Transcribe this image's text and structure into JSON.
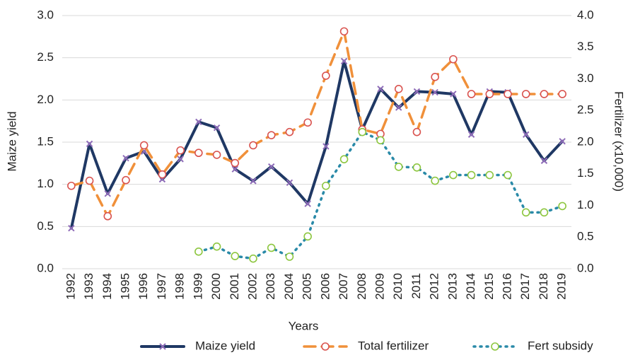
{
  "chart_data": {
    "type": "line",
    "x_label": "Years",
    "y_label": "Maize yield",
    "y2_label": "Fertilizer (x10,000)",
    "categories": [
      "1992",
      "1993",
      "1994",
      "1995",
      "1996",
      "1997",
      "1998",
      "1999",
      "2000",
      "2001",
      "2002",
      "2003",
      "2004",
      "2005",
      "2006",
      "2007",
      "2008",
      "2009",
      "2010",
      "2011",
      "2012",
      "2013",
      "2014",
      "2015",
      "2016",
      "2017",
      "2018",
      "2019"
    ],
    "ylim": [
      0,
      3
    ],
    "yticks": [
      {
        "value": 0,
        "label": "0.0"
      },
      {
        "value": 0.5,
        "label": "0.5"
      },
      {
        "value": 1,
        "label": "1.0"
      },
      {
        "value": 1.5,
        "label": "1.5"
      },
      {
        "value": 2,
        "label": "2.0"
      },
      {
        "value": 2.5,
        "label": "2.5"
      },
      {
        "value": 3,
        "label": "3.0"
      }
    ],
    "y2lim": [
      0,
      4
    ],
    "y2ticks": [
      {
        "value": 0,
        "label": "0.0"
      },
      {
        "value": 0.5,
        "label": "0.5"
      },
      {
        "value": 1,
        "label": "1.0"
      },
      {
        "value": 1.5,
        "label": "1.5"
      },
      {
        "value": 2,
        "label": "2.0"
      },
      {
        "value": 2.5,
        "label": "2.5"
      },
      {
        "value": 3,
        "label": "3.0"
      },
      {
        "value": 3.5,
        "label": "3.5"
      },
      {
        "value": 4,
        "label": "4.0"
      }
    ],
    "grid": true,
    "legend": "bottom",
    "series": [
      {
        "name": "Maize yield",
        "color": "#1f3864",
        "marker": "x",
        "marker_color": "#8e6bb8",
        "dash": "solid",
        "values": [
          0.48,
          1.48,
          0.89,
          1.31,
          1.39,
          1.06,
          1.3,
          1.74,
          1.67,
          1.18,
          1.04,
          1.21,
          1.02,
          0.77,
          1.45,
          2.46,
          1.65,
          2.13,
          1.91,
          2.1,
          2.09,
          2.07,
          1.59,
          2.1,
          2.09,
          1.59,
          1.28,
          1.51
        ]
      },
      {
        "name": "Total fertilizer",
        "color": "#f0903a",
        "marker": "circle",
        "marker_color": "#d9534f",
        "dash": "dashed",
        "axis": "y2",
        "values": [
          1.31,
          1.39,
          0.83,
          1.4,
          1.95,
          1.49,
          1.87,
          1.83,
          1.8,
          1.67,
          1.95,
          2.11,
          2.16,
          2.31,
          3.05,
          3.75,
          2.2,
          2.13,
          2.84,
          2.16,
          3.03,
          3.31,
          2.76,
          2.76,
          2.76,
          2.76,
          2.76,
          2.76
        ]
      },
      {
        "name": "Fert subsidy",
        "color": "#2a8aa8",
        "marker": "circle",
        "marker_color": "#8dc63f",
        "dash": "dotted",
        "axis": "y2",
        "values": [
          null,
          null,
          null,
          null,
          null,
          null,
          null,
          0.27,
          0.35,
          0.2,
          0.16,
          0.33,
          0.19,
          0.51,
          1.31,
          1.73,
          2.16,
          2.03,
          1.61,
          1.6,
          1.39,
          1.48,
          1.48,
          1.48,
          1.48,
          0.89,
          0.89,
          0.99
        ]
      }
    ]
  }
}
